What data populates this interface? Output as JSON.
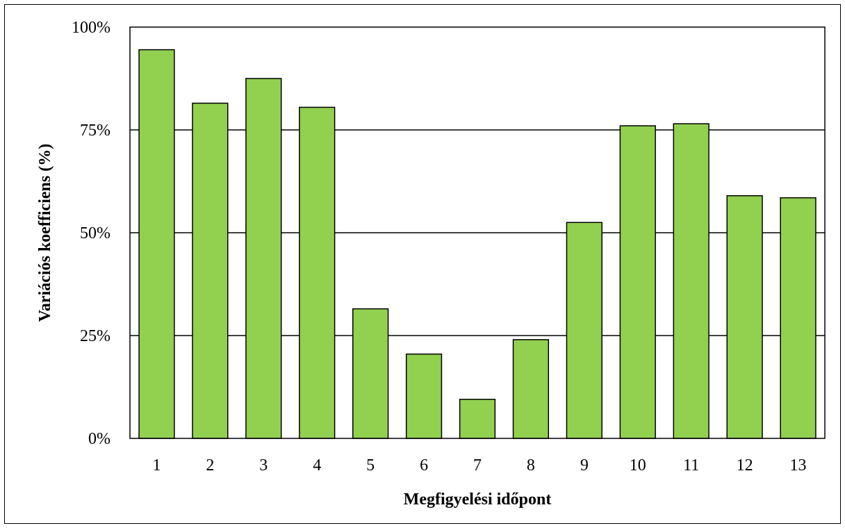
{
  "chart_data": {
    "type": "bar",
    "title": "",
    "xlabel": "Megfigyelési időpont",
    "ylabel": "Variációs koefficiens (%)",
    "categories": [
      "1",
      "2",
      "3",
      "4",
      "5",
      "6",
      "7",
      "8",
      "9",
      "10",
      "11",
      "12",
      "13"
    ],
    "values": [
      94.5,
      81.5,
      87.5,
      80.5,
      31.5,
      20.5,
      9.5,
      24.0,
      52.5,
      76.0,
      76.5,
      59.0,
      58.5
    ],
    "ylim": [
      0,
      100
    ],
    "yticks": [
      0,
      25,
      50,
      75,
      100
    ],
    "ytick_labels": [
      "0%",
      "25%",
      "50%",
      "75%",
      "100%"
    ],
    "grid": true,
    "legend": "none",
    "colors": {
      "bar_fill": "#92d050",
      "bar_stroke": "#000000",
      "grid": "#000000"
    }
  }
}
